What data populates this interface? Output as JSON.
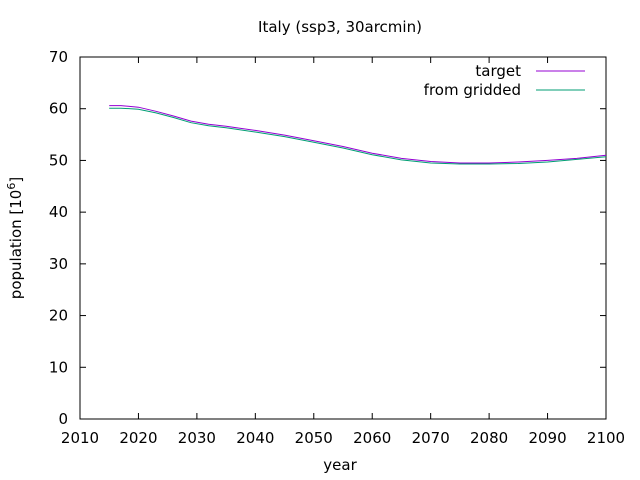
{
  "chart_data": {
    "type": "line",
    "title": "Italy (ssp3, 30arcmin)",
    "xlabel": "year",
    "ylabel": "population [10",
    "ylabel_sup": "6",
    "ylabel_end": "]",
    "xlim": [
      2010,
      2100
    ],
    "ylim": [
      0,
      70
    ],
    "xticks": [
      "2010",
      "2020",
      "2030",
      "2040",
      "2050",
      "2060",
      "2070",
      "2080",
      "2090",
      "2100"
    ],
    "yticks": [
      "0",
      "10",
      "20",
      "30",
      "40",
      "50",
      "60",
      "70"
    ],
    "grid": false,
    "legend_position": "top-right",
    "series": [
      {
        "name": "target",
        "color": "#9400d3",
        "x": [
          2015,
          2017,
          2020,
          2023,
          2026,
          2029,
          2032,
          2035,
          2040,
          2045,
          2050,
          2055,
          2060,
          2065,
          2070,
          2075,
          2080,
          2085,
          2090,
          2095,
          2100
        ],
        "y": [
          60.6,
          60.6,
          60.3,
          59.5,
          58.6,
          57.6,
          57.0,
          56.6,
          55.8,
          54.9,
          53.8,
          52.7,
          51.4,
          50.4,
          49.8,
          49.5,
          49.5,
          49.7,
          50.0,
          50.4,
          51.0
        ]
      },
      {
        "name": "from gridded",
        "color": "#009e73",
        "x": [
          2015,
          2017,
          2020,
          2023,
          2026,
          2029,
          2032,
          2035,
          2040,
          2045,
          2050,
          2055,
          2060,
          2065,
          2070,
          2075,
          2080,
          2085,
          2090,
          2095,
          2100
        ],
        "y": [
          60.1,
          60.1,
          59.9,
          59.2,
          58.3,
          57.3,
          56.7,
          56.3,
          55.5,
          54.6,
          53.5,
          52.4,
          51.1,
          50.1,
          49.5,
          49.3,
          49.3,
          49.4,
          49.7,
          50.2,
          50.7
        ]
      }
    ]
  }
}
